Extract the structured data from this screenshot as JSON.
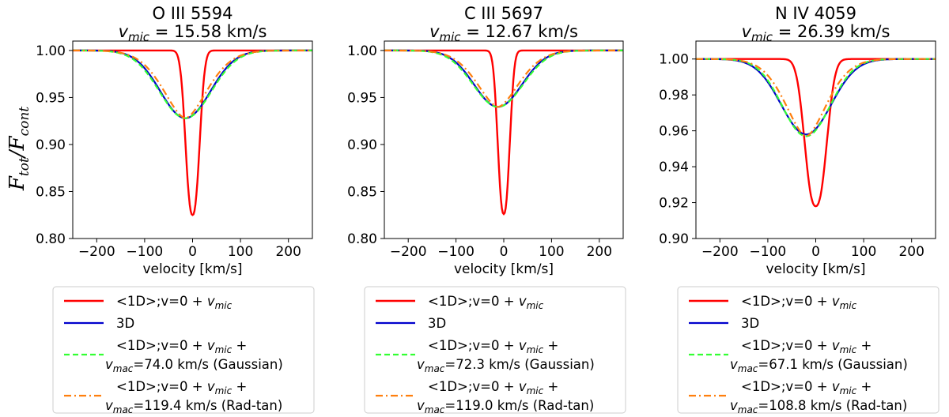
{
  "figure": {
    "ylabel_main": "F",
    "ylabel_main_sub": "tot",
    "ylabel_den": "F",
    "ylabel_den_sub": "cont"
  },
  "colors": {
    "oneD": "#ff0000",
    "threeD": "#0000cc",
    "gauss": "#33ff33",
    "radtan": "#ff7f0e"
  },
  "chart_data": [
    {
      "type": "line",
      "title_line1": "O III 5594",
      "title_sym": "v",
      "title_sub": "mic",
      "title_value": " = 15.58 km/s",
      "xlabel": "velocity [km/s]",
      "xlim": [
        -250,
        250
      ],
      "ylim": [
        0.8,
        1.01
      ],
      "xticks": [
        -200,
        -100,
        0,
        100,
        200
      ],
      "yticks": [
        0.8,
        0.85,
        0.9,
        0.95,
        1.0
      ],
      "ytick_labels": [
        "0.80",
        "0.85",
        "0.90",
        "0.95",
        "1.00"
      ],
      "line_center": -15,
      "series": [
        {
          "key": "oneD",
          "depth": 0.175,
          "sigma": 14,
          "shape": "gauss"
        },
        {
          "key": "threeD",
          "depth": 0.072,
          "sigma": 52,
          "shape": "gauss"
        },
        {
          "key": "gauss",
          "depth": 0.072,
          "sigma": 54,
          "shape": "gauss"
        },
        {
          "key": "radtan",
          "depth": 0.072,
          "sigma": 50,
          "shape": "radtan"
        }
      ],
      "legend": [
        {
          "key": "oneD",
          "text1": "<1D>;v=0 + ",
          "sym": "v",
          "sub": "mic"
        },
        {
          "key": "threeD",
          "text1": "3D"
        },
        {
          "key": "gauss",
          "text1": "<1D>;v=0 + ",
          "sym": "v",
          "sub": "mic",
          "tail": " +",
          "line2": "=74.0 km/s (Gaussian)",
          "sym2": "v",
          "sub2": "mac"
        },
        {
          "key": "radtan",
          "text1": "<1D>;v=0 + ",
          "sym": "v",
          "sub": "mic",
          "tail": " +",
          "line2": "=119.4 km/s (Rad-tan)",
          "sym2": "v",
          "sub2": "mac"
        }
      ]
    },
    {
      "type": "line",
      "title_line1": "C III 5697",
      "title_sym": "v",
      "title_sub": "mic",
      "title_value": " = 12.67 km/s",
      "xlabel": "velocity [km/s]",
      "xlim": [
        -250,
        250
      ],
      "ylim": [
        0.8,
        1.01
      ],
      "xticks": [
        -200,
        -100,
        0,
        100,
        200
      ],
      "yticks": [
        0.8,
        0.85,
        0.9,
        0.95,
        1.0
      ],
      "ytick_labels": [
        "0.80",
        "0.85",
        "0.90",
        "0.95",
        "1.00"
      ],
      "line_center": -12,
      "series": [
        {
          "key": "oneD",
          "depth": 0.174,
          "sigma": 12,
          "shape": "gauss"
        },
        {
          "key": "threeD",
          "depth": 0.06,
          "sigma": 50,
          "shape": "gauss"
        },
        {
          "key": "gauss",
          "depth": 0.06,
          "sigma": 52,
          "shape": "gauss"
        },
        {
          "key": "radtan",
          "depth": 0.06,
          "sigma": 48,
          "shape": "radtan"
        }
      ],
      "legend": [
        {
          "key": "oneD",
          "text1": "<1D>;v=0 + ",
          "sym": "v",
          "sub": "mic"
        },
        {
          "key": "threeD",
          "text1": "3D"
        },
        {
          "key": "gauss",
          "text1": "<1D>;v=0 + ",
          "sym": "v",
          "sub": "mic",
          "tail": " +",
          "line2": "=72.3 km/s (Gaussian)",
          "sym2": "v",
          "sub2": "mac"
        },
        {
          "key": "radtan",
          "text1": "<1D>;v=0 + ",
          "sym": "v",
          "sub": "mic",
          "tail": " +",
          "line2": "=119.0 km/s (Rad-tan)",
          "sym2": "v",
          "sub2": "mac"
        }
      ]
    },
    {
      "type": "line",
      "title_line1": "N IV 4059",
      "title_sym": "v",
      "title_sub": "mic",
      "title_value": " = 26.39 km/s",
      "xlabel": "velocity [km/s]",
      "xlim": [
        -250,
        250
      ],
      "ylim": [
        0.9,
        1.01
      ],
      "xticks": [
        -200,
        -100,
        0,
        100,
        200
      ],
      "yticks": [
        0.9,
        0.92,
        0.94,
        0.96,
        0.98,
        1.0
      ],
      "ytick_labels": [
        "0.90",
        "0.92",
        "0.94",
        "0.96",
        "0.98",
        "1.00"
      ],
      "line_center": -20,
      "series": [
        {
          "key": "oneD",
          "depth": 0.082,
          "sigma": 22,
          "shape": "gauss"
        },
        {
          "key": "threeD",
          "depth": 0.042,
          "sigma": 52,
          "shape": "gauss"
        },
        {
          "key": "gauss",
          "depth": 0.043,
          "sigma": 50,
          "shape": "gauss"
        },
        {
          "key": "radtan",
          "depth": 0.043,
          "sigma": 47,
          "shape": "radtan"
        }
      ],
      "legend": [
        {
          "key": "oneD",
          "text1": "<1D>;v=0 + ",
          "sym": "v",
          "sub": "mic"
        },
        {
          "key": "threeD",
          "text1": "3D"
        },
        {
          "key": "gauss",
          "text1": "<1D>;v=0 + ",
          "sym": "v",
          "sub": "mic",
          "tail": " +",
          "line2": "=67.1 km/s (Gaussian)",
          "sym2": "v",
          "sub2": "mac"
        },
        {
          "key": "radtan",
          "text1": "<1D>;v=0 + ",
          "sym": "v",
          "sub": "mic",
          "tail": " +",
          "line2": "=108.8 km/s (Rad-tan)",
          "sym2": "v",
          "sub2": "mac"
        }
      ]
    }
  ]
}
